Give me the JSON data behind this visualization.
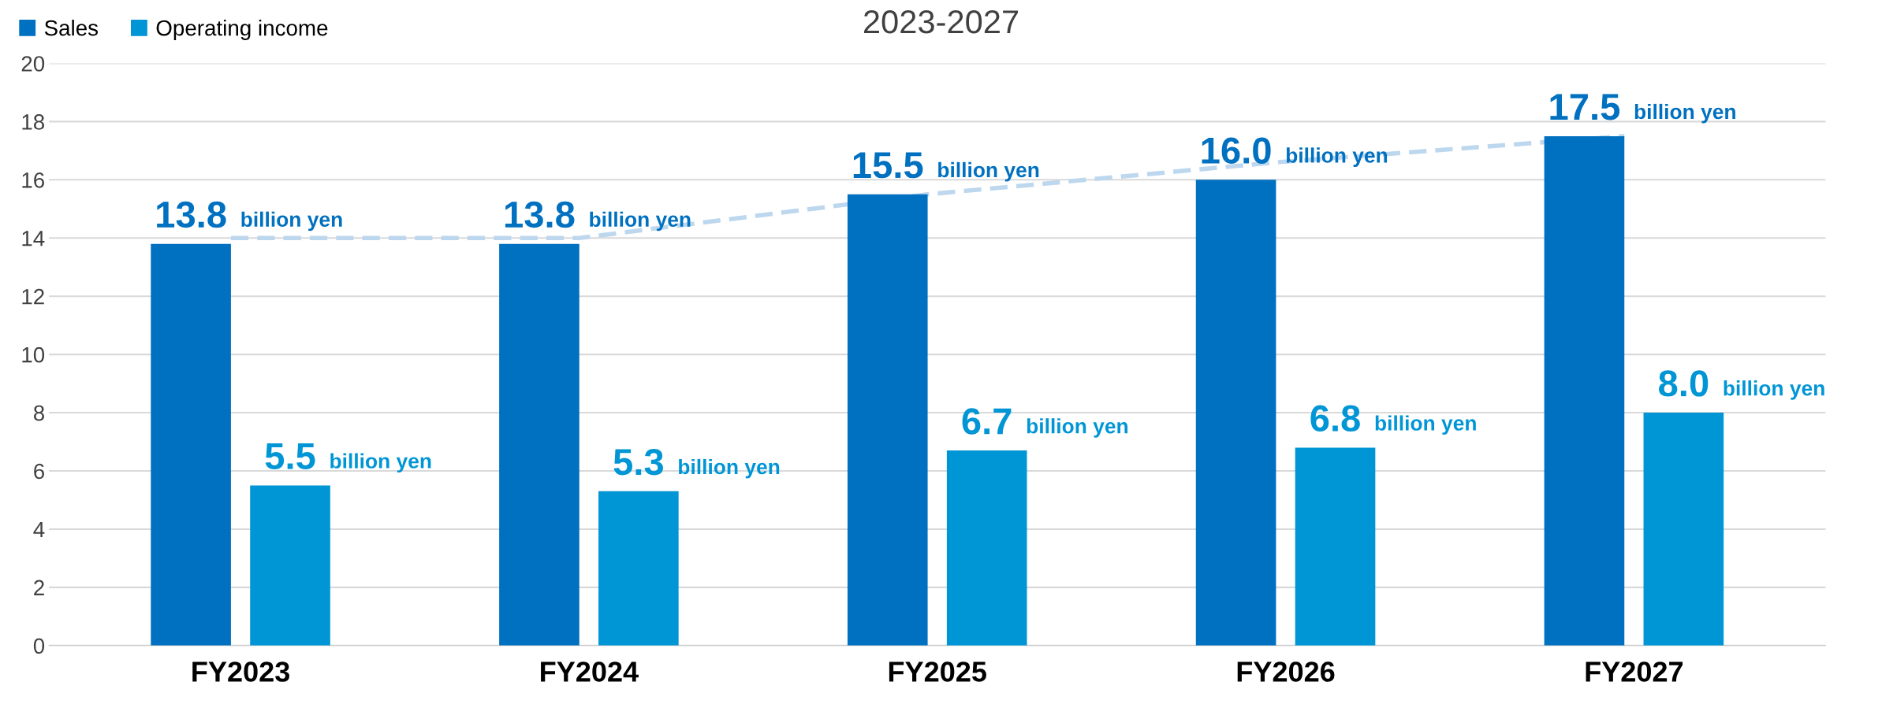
{
  "chart_data": {
    "type": "bar",
    "title": "2023-2027",
    "categories": [
      "FY2023",
      "FY2024",
      "FY2025",
      "FY2026",
      "FY2027"
    ],
    "series": [
      {
        "name": "Sales",
        "color": "#0070c0",
        "values": [
          13.8,
          13.8,
          15.5,
          16.0,
          17.5
        ],
        "value_labels": [
          "13.8 billion yen",
          "13.8 billion yen",
          "15.5 billion yen",
          "16.0 billion yen",
          "17.5 billion yen"
        ]
      },
      {
        "name": "Operating income",
        "color": "#0096d6",
        "values": [
          5.5,
          5.3,
          6.7,
          6.8,
          8.0
        ],
        "value_labels": [
          "5.5 billion yen",
          "5.3 billion yen",
          "6.7 billion yen",
          "6.8 billion yen",
          "8.0 billion yen"
        ]
      },
      {
        "type": "line",
        "color": "#bdd7ee",
        "line_style": "dashed",
        "values": [
          14.0,
          14.0,
          15.5,
          16.6,
          17.5
        ]
      }
    ],
    "ylim": [
      0,
      20
    ],
    "yticks": [
      0,
      2,
      4,
      6,
      8,
      10,
      12,
      14,
      16,
      18,
      20
    ],
    "grid": "y",
    "legend": "top left"
  }
}
